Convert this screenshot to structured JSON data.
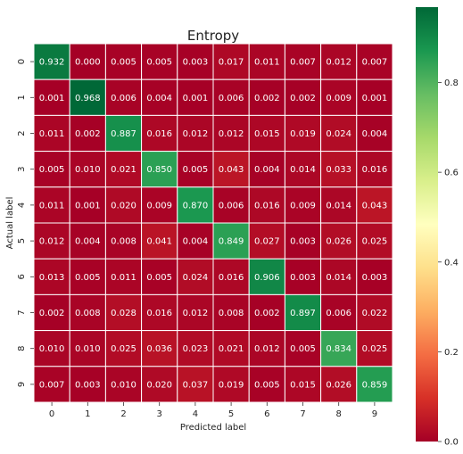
{
  "chart_data": {
    "type": "heatmap",
    "title": "Entropy",
    "xlabel": "Predicted label",
    "ylabel": "Actual label",
    "x_categories": [
      "0",
      "1",
      "2",
      "3",
      "4",
      "5",
      "6",
      "7",
      "8",
      "9"
    ],
    "y_categories": [
      "0",
      "1",
      "2",
      "3",
      "4",
      "5",
      "6",
      "7",
      "8",
      "9"
    ],
    "values": [
      [
        0.932,
        0.0,
        0.005,
        0.005,
        0.003,
        0.017,
        0.011,
        0.007,
        0.012,
        0.007
      ],
      [
        0.001,
        0.968,
        0.006,
        0.004,
        0.001,
        0.006,
        0.002,
        0.002,
        0.009,
        0.001
      ],
      [
        0.011,
        0.002,
        0.887,
        0.016,
        0.012,
        0.012,
        0.015,
        0.019,
        0.024,
        0.004
      ],
      [
        0.005,
        0.01,
        0.021,
        0.85,
        0.005,
        0.043,
        0.004,
        0.014,
        0.033,
        0.016
      ],
      [
        0.011,
        0.001,
        0.02,
        0.009,
        0.87,
        0.006,
        0.016,
        0.009,
        0.014,
        0.043
      ],
      [
        0.012,
        0.004,
        0.008,
        0.041,
        0.004,
        0.849,
        0.027,
        0.003,
        0.026,
        0.025
      ],
      [
        0.013,
        0.005,
        0.011,
        0.005,
        0.024,
        0.016,
        0.906,
        0.003,
        0.014,
        0.003
      ],
      [
        0.002,
        0.008,
        0.028,
        0.016,
        0.012,
        0.008,
        0.002,
        0.897,
        0.006,
        0.022
      ],
      [
        0.01,
        0.01,
        0.025,
        0.036,
        0.023,
        0.021,
        0.012,
        0.005,
        0.834,
        0.025
      ],
      [
        0.007,
        0.003,
        0.01,
        0.02,
        0.037,
        0.019,
        0.005,
        0.015,
        0.026,
        0.859
      ]
    ],
    "value_format_decimals": 3,
    "colormap": "RdYlGn",
    "vmin": 0.0,
    "vmax": 0.968,
    "colorbar": {
      "ticks": [
        0.0,
        0.2,
        0.4,
        0.6,
        0.8
      ],
      "tick_labels": [
        "0.0",
        "0.2",
        "0.4",
        "0.6",
        "0.8"
      ]
    },
    "cell_border_color": "#ffffff",
    "grid": false
  }
}
